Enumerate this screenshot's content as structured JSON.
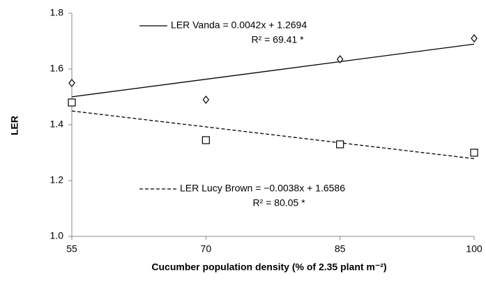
{
  "chart_data": {
    "type": "scatter",
    "x_label": "Cucumber population density (% of 2.35 plant m⁻²)",
    "y_label": "LER",
    "xlim": [
      55,
      100
    ],
    "xticks": [
      55,
      70,
      85,
      100
    ],
    "ylim": [
      1.0,
      1.8
    ],
    "yticks": [
      {
        "value": 1.0,
        "label": "1.0"
      },
      1.2,
      1.4,
      1.6,
      1.8
    ],
    "x": [
      55,
      70,
      85,
      100
    ],
    "series": [
      {
        "marker": "diamond",
        "color": "#000000",
        "dash": false,
        "values": [
          1.55,
          1.49,
          1.635,
          1.71
        ],
        "trend_x": [
          55,
          100
        ],
        "trend_values": [
          1.5004,
          1.6894
        ],
        "equation": "LER Vanda = 0.0042x + 1.2694",
        "r2": "R² = 69.41 *"
      },
      {
        "marker": "square",
        "color": "#000000",
        "dash": true,
        "values": [
          1.48,
          1.345,
          1.33,
          1.3
        ],
        "trend_x": [
          55,
          100
        ],
        "trend_values": [
          1.4496,
          1.2786
        ],
        "equation": "LER Lucy Brown = −0.0038x + 1.6586",
        "r2": "R² = 80.05 *"
      }
    ]
  }
}
